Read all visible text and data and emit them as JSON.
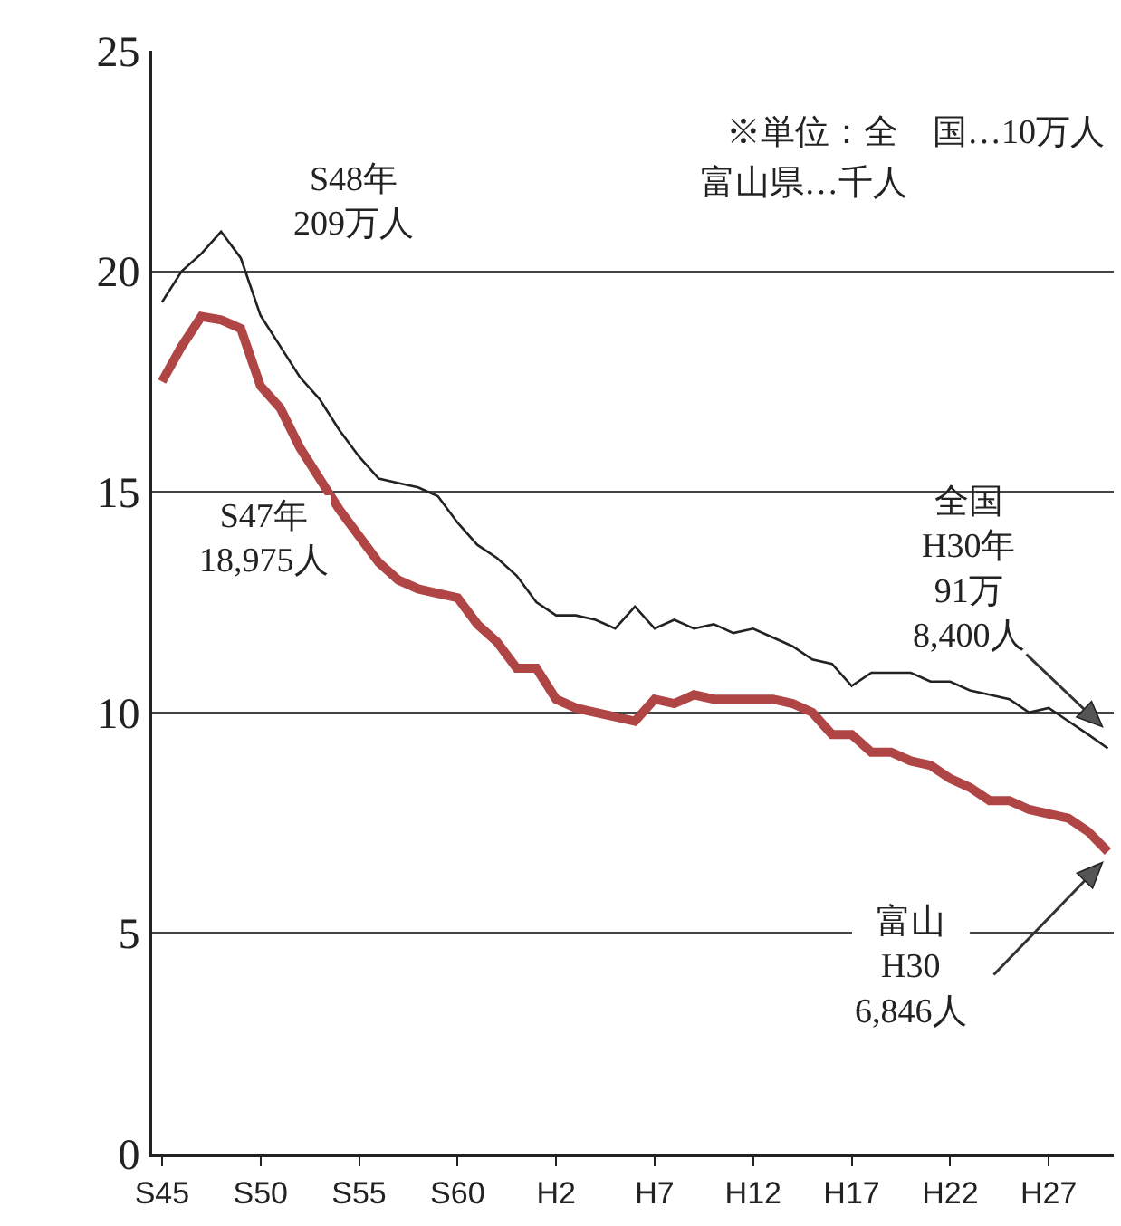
{
  "chart_data": {
    "type": "line",
    "categories": [
      "S45",
      null,
      null,
      null,
      null,
      "S50",
      null,
      null,
      null,
      null,
      "S55",
      null,
      null,
      null,
      null,
      "S60",
      null,
      null,
      null,
      null,
      "H2",
      null,
      null,
      null,
      null,
      "H7",
      null,
      null,
      null,
      null,
      "H12",
      null,
      null,
      null,
      null,
      "H17",
      null,
      null,
      null,
      null,
      "H22",
      null,
      null,
      null,
      null,
      "H27",
      null,
      null,
      null
    ],
    "series": [
      {
        "color": "#222222",
        "values": [
          19.3,
          20.0,
          20.4,
          20.9,
          20.3,
          19.0,
          18.3,
          17.6,
          17.1,
          16.4,
          15.8,
          15.3,
          15.2,
          15.1,
          14.9,
          14.3,
          13.8,
          13.5,
          13.1,
          12.5,
          12.2,
          12.2,
          12.1,
          11.9,
          12.4,
          11.9,
          12.1,
          11.9,
          12.0,
          11.8,
          11.9,
          11.7,
          11.5,
          11.2,
          11.1,
          10.6,
          10.9,
          10.9,
          10.9,
          10.7,
          10.7,
          10.5,
          10.4,
          10.3,
          10.0,
          10.1,
          9.8,
          9.5,
          9.184
        ]
      },
      {
        "color": "#b04545",
        "values": [
          17.5,
          18.3,
          18.975,
          18.9,
          18.7,
          17.4,
          16.9,
          16.0,
          15.3,
          14.6,
          14.0,
          13.4,
          13.0,
          12.8,
          12.7,
          12.6,
          12.0,
          11.6,
          11.0,
          11.0,
          10.3,
          10.1,
          10.0,
          9.9,
          9.8,
          10.3,
          10.2,
          10.4,
          10.3,
          10.3,
          10.3,
          10.3,
          10.2,
          10.0,
          9.5,
          9.5,
          9.1,
          9.1,
          8.9,
          8.8,
          8.5,
          8.3,
          8.0,
          8.0,
          7.8,
          7.7,
          7.6,
          7.3,
          6.846
        ]
      }
    ],
    "ylim": [
      0,
      25
    ],
    "yticks": [
      0,
      5,
      10,
      15,
      20,
      25
    ],
    "grid": "y",
    "marker": "none",
    "line_style": "solid",
    "annotations": [
      "※単位：全　国…10万人",
      "富山県…千人",
      "S48年\n209万人",
      "S47年\n18,975人",
      "全国\nH30年\n91万\n8,400人",
      "富山\nH30\n6,846人"
    ]
  }
}
